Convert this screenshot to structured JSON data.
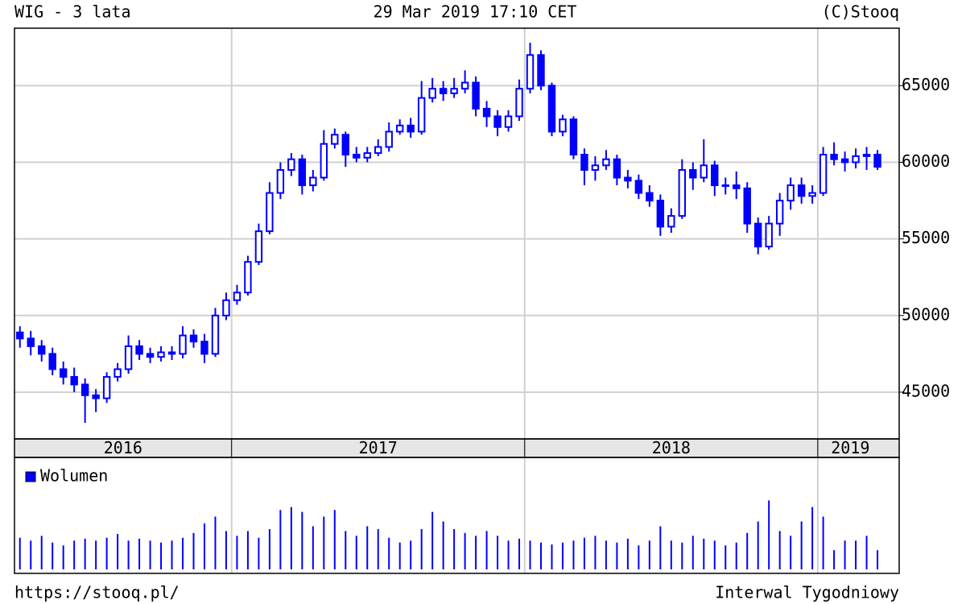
{
  "chart_data": [
    {
      "type": "candlestick",
      "title": "WIG - 3 lata",
      "subtitle": "29 Mar 2019 17:10 CET",
      "source": "(C)Stooq",
      "color": "#0000ff",
      "grid": true,
      "categories": [
        "2016",
        null,
        null,
        null,
        null,
        null,
        null,
        null,
        null,
        null,
        null,
        null,
        null,
        null,
        null,
        null,
        null,
        null,
        null,
        null,
        "2017",
        null,
        null,
        null,
        null,
        null,
        null,
        null,
        null,
        null,
        null,
        null,
        null,
        null,
        null,
        null,
        null,
        null,
        null,
        null,
        null,
        null,
        null,
        null,
        null,
        null,
        null,
        "2018",
        null,
        null,
        null,
        null,
        null,
        null,
        null,
        null,
        null,
        null,
        null,
        null,
        null,
        null,
        null,
        null,
        null,
        null,
        null,
        null,
        null,
        null,
        null,
        null,
        null,
        null,
        "2019",
        null,
        null,
        null,
        null,
        null
      ],
      "open": [
        48900,
        48500,
        48000,
        47500,
        46500,
        46000,
        45500,
        44800,
        44600,
        46000,
        46500,
        48000,
        47500,
        47300,
        47600,
        47500,
        48700,
        48300,
        47500,
        50000,
        51000,
        51500,
        53500,
        55500,
        58000,
        59500,
        60200,
        58500,
        59000,
        61200,
        61800,
        60500,
        60300,
        60600,
        61000,
        62000,
        62400,
        62000,
        64200,
        64800,
        64500,
        64800,
        65200,
        63500,
        63000,
        62300,
        63000,
        64800,
        67000,
        65000,
        62000,
        62800,
        60500,
        59500,
        59800,
        60200,
        59000,
        58800,
        58000,
        57500,
        55800,
        56500,
        59500,
        59000,
        59800,
        58500,
        58500,
        58300,
        56000,
        54500,
        56000,
        57500,
        58500,
        57800,
        58000,
        60500,
        60200,
        60000,
        60400,
        60500
      ],
      "high": [
        49300,
        49000,
        48400,
        47900,
        47000,
        46600,
        45900,
        45200,
        46300,
        46900,
        48700,
        48400,
        47900,
        48000,
        48000,
        49300,
        49100,
        48800,
        50500,
        51500,
        52000,
        53900,
        56000,
        58700,
        60000,
        60600,
        60500,
        59500,
        62100,
        62200,
        62000,
        61000,
        61000,
        61500,
        62600,
        62800,
        62900,
        65300,
        65500,
        65300,
        65500,
        66000,
        65600,
        64000,
        63400,
        63400,
        65400,
        67800,
        67300,
        65200,
        63100,
        63000,
        60900,
        60400,
        60800,
        60500,
        59500,
        59200,
        58500,
        57900,
        57000,
        60200,
        60000,
        61500,
        60100,
        59000,
        59400,
        58700,
        56400,
        56500,
        58000,
        59000,
        59000,
        58500,
        61000,
        61300,
        60700,
        60900,
        61000,
        60800
      ],
      "low": [
        47900,
        47400,
        47000,
        46100,
        45500,
        45000,
        43000,
        43700,
        44300,
        45700,
        46200,
        47100,
        46900,
        47000,
        47100,
        47200,
        47900,
        46900,
        47300,
        49700,
        50700,
        51300,
        53300,
        55300,
        57600,
        59100,
        57900,
        58100,
        58800,
        60900,
        59700,
        60000,
        60000,
        60400,
        60700,
        61800,
        61600,
        61800,
        63900,
        64000,
        64200,
        64500,
        63000,
        62300,
        61700,
        62000,
        62700,
        64500,
        64700,
        61700,
        61700,
        60200,
        58500,
        58800,
        59500,
        58500,
        58300,
        57600,
        57100,
        55200,
        55400,
        56300,
        58200,
        58700,
        57800,
        57900,
        57600,
        55400,
        54000,
        54300,
        55200,
        56900,
        57300,
        57300,
        57800,
        59800,
        59400,
        59600,
        59500,
        59500
      ],
      "close": [
        48500,
        48000,
        47500,
        46500,
        46000,
        45500,
        44800,
        44600,
        46000,
        46500,
        48000,
        47500,
        47300,
        47600,
        47500,
        48700,
        48300,
        47500,
        50000,
        51000,
        51500,
        53500,
        55500,
        58000,
        59500,
        60200,
        58500,
        59000,
        61200,
        61800,
        60500,
        60300,
        60600,
        61000,
        62000,
        62400,
        62000,
        64200,
        64800,
        64500,
        64800,
        65200,
        63500,
        63000,
        62300,
        63000,
        64800,
        67000,
        65000,
        62000,
        62800,
        60500,
        59500,
        59800,
        60200,
        59000,
        58800,
        58000,
        57500,
        55800,
        56500,
        59500,
        59000,
        59800,
        58500,
        58500,
        58300,
        56000,
        54500,
        56000,
        57500,
        58500,
        57800,
        58000,
        60500,
        60200,
        60000,
        60400,
        60500,
        59700
      ],
      "ylim": [
        41950,
        68750
      ],
      "yticks": [
        45000,
        50000,
        55000,
        60000,
        65000
      ]
    },
    {
      "type": "bar",
      "legend": "top-left",
      "ylim": [
        0,
        100
      ],
      "series": [
        {
          "name": "Wolumen",
          "color": "#0000ff",
          "values": [
            33,
            30,
            35,
            28,
            25,
            30,
            32,
            30,
            33,
            37,
            30,
            32,
            30,
            28,
            30,
            33,
            38,
            48,
            55,
            40,
            35,
            40,
            33,
            42,
            62,
            65,
            60,
            45,
            55,
            62,
            40,
            35,
            45,
            42,
            33,
            28,
            30,
            42,
            60,
            50,
            42,
            38,
            35,
            40,
            35,
            30,
            32,
            30,
            28,
            26,
            28,
            30,
            33,
            35,
            30,
            28,
            32,
            25,
            30,
            45,
            30,
            28,
            35,
            32,
            30,
            25,
            28,
            38,
            50,
            72,
            40,
            35,
            50,
            65,
            55,
            20,
            30,
            30,
            35,
            20
          ]
        }
      ]
    }
  ],
  "footer": {
    "url": "https://stooq.pl/",
    "interval": "Interwal Tygodniowy"
  }
}
